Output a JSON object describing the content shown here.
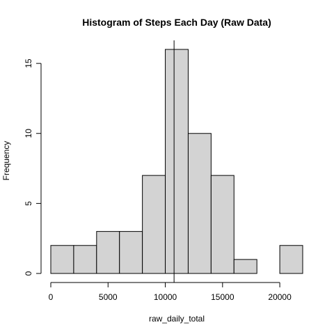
{
  "chart_data": {
    "type": "bar",
    "subtype": "histogram",
    "title": "Histogram of Steps Each Day (Raw Data)",
    "xlabel": "raw_daily_total",
    "ylabel": "Frequency",
    "bins": [
      {
        "x0": 0,
        "x1": 2000,
        "count": 2
      },
      {
        "x0": 2000,
        "x1": 4000,
        "count": 2
      },
      {
        "x0": 4000,
        "x1": 6000,
        "count": 3
      },
      {
        "x0": 6000,
        "x1": 8000,
        "count": 3
      },
      {
        "x0": 8000,
        "x1": 10000,
        "count": 7
      },
      {
        "x0": 10000,
        "x1": 12000,
        "count": 16
      },
      {
        "x0": 12000,
        "x1": 14000,
        "count": 10
      },
      {
        "x0": 14000,
        "x1": 16000,
        "count": 7
      },
      {
        "x0": 16000,
        "x1": 18000,
        "count": 1
      },
      {
        "x0": 18000,
        "x1": 20000,
        "count": 0
      },
      {
        "x0": 20000,
        "x1": 22000,
        "count": 2
      }
    ],
    "xlim": [
      0,
      22000
    ],
    "ylim": [
      0,
      16
    ],
    "x_ticks": [
      0,
      5000,
      10000,
      15000,
      20000
    ],
    "y_ticks": [
      0,
      5,
      10,
      15
    ],
    "reference_line_x": 10766,
    "grid": false,
    "bar_color": "#d3d3d3",
    "edge_color": "#000000"
  }
}
